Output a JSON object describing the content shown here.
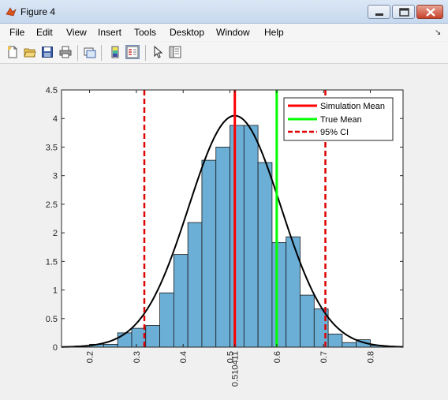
{
  "window": {
    "title": "Figure 4"
  },
  "menu": [
    "File",
    "Edit",
    "View",
    "Insert",
    "Tools",
    "Desktop",
    "Window",
    "Help"
  ],
  "toolbar_icons": [
    "new-figure-icon",
    "open-file-icon",
    "save-icon",
    "print-icon",
    "link-plot-icon",
    "colorbar-icon",
    "legend-icon",
    "pointer-icon",
    "property-editor-icon"
  ],
  "chart_data": {
    "type": "histogram",
    "xlim": [
      0.14,
      0.87
    ],
    "ylim": [
      0,
      4.5
    ],
    "grid": false,
    "bins": [
      {
        "left": 0.17,
        "right": 0.2,
        "value": 0.02
      },
      {
        "left": 0.2,
        "right": 0.23,
        "value": 0.05
      },
      {
        "left": 0.23,
        "right": 0.26,
        "value": 0.05
      },
      {
        "left": 0.26,
        "right": 0.29,
        "value": 0.25
      },
      {
        "left": 0.29,
        "right": 0.32,
        "value": 0.33
      },
      {
        "left": 0.32,
        "right": 0.35,
        "value": 0.38
      },
      {
        "left": 0.35,
        "right": 0.38,
        "value": 0.95
      },
      {
        "left": 0.38,
        "right": 0.41,
        "value": 1.62
      },
      {
        "left": 0.41,
        "right": 0.44,
        "value": 2.18
      },
      {
        "left": 0.44,
        "right": 0.47,
        "value": 3.27
      },
      {
        "left": 0.47,
        "right": 0.5,
        "value": 3.5
      },
      {
        "left": 0.5,
        "right": 0.53,
        "value": 3.88
      },
      {
        "left": 0.53,
        "right": 0.56,
        "value": 3.88
      },
      {
        "left": 0.56,
        "right": 0.59,
        "value": 3.23
      },
      {
        "left": 0.59,
        "right": 0.62,
        "value": 1.83
      },
      {
        "left": 0.62,
        "right": 0.65,
        "value": 1.93
      },
      {
        "left": 0.65,
        "right": 0.68,
        "value": 0.91
      },
      {
        "left": 0.68,
        "right": 0.71,
        "value": 0.67
      },
      {
        "left": 0.71,
        "right": 0.74,
        "value": 0.23
      },
      {
        "left": 0.74,
        "right": 0.77,
        "value": 0.08
      },
      {
        "left": 0.77,
        "right": 0.8,
        "value": 0.13
      },
      {
        "left": 0.8,
        "right": 0.83,
        "value": 0.03
      },
      {
        "left": 0.83,
        "right": 0.87,
        "value": 0.01
      }
    ],
    "normal_fit": {
      "mean": 0.510411,
      "sd": 0.0985
    },
    "vlines": [
      {
        "name": "Simulation Mean",
        "x": 0.510411,
        "color": "#ff0000",
        "style": "solid"
      },
      {
        "name": "True Mean",
        "x": 0.6,
        "color": "#00ff00",
        "style": "solid"
      },
      {
        "name": "95% CI",
        "x": 0.317,
        "color": "#dd0000",
        "style": "dashed"
      },
      {
        "name": "95% CI",
        "x": 0.704,
        "color": "#dd0000",
        "style": "dashed"
      }
    ],
    "yticks": [
      0,
      0.5,
      1,
      1.5,
      2,
      2.5,
      3,
      3.5,
      4,
      4.5
    ],
    "ytick_labels": [
      "0",
      "0.5",
      "1",
      "1.5",
      "2",
      "2.5",
      "3",
      "3.5",
      "4",
      "4.5"
    ],
    "xticks": [
      0.2,
      0.3,
      0.4,
      0.5,
      0.510411,
      0.6,
      0.7,
      0.8
    ],
    "xtick_labels": [
      "0.2",
      "0.3",
      "0.4",
      "0.5",
      "0.510411",
      "0.6",
      "0.7",
      "0.8"
    ],
    "legend": {
      "placement": "top-right",
      "entries": [
        "Simulation Mean",
        "True Mean",
        "95% CI"
      ]
    },
    "bar_color": "#6baed6"
  }
}
